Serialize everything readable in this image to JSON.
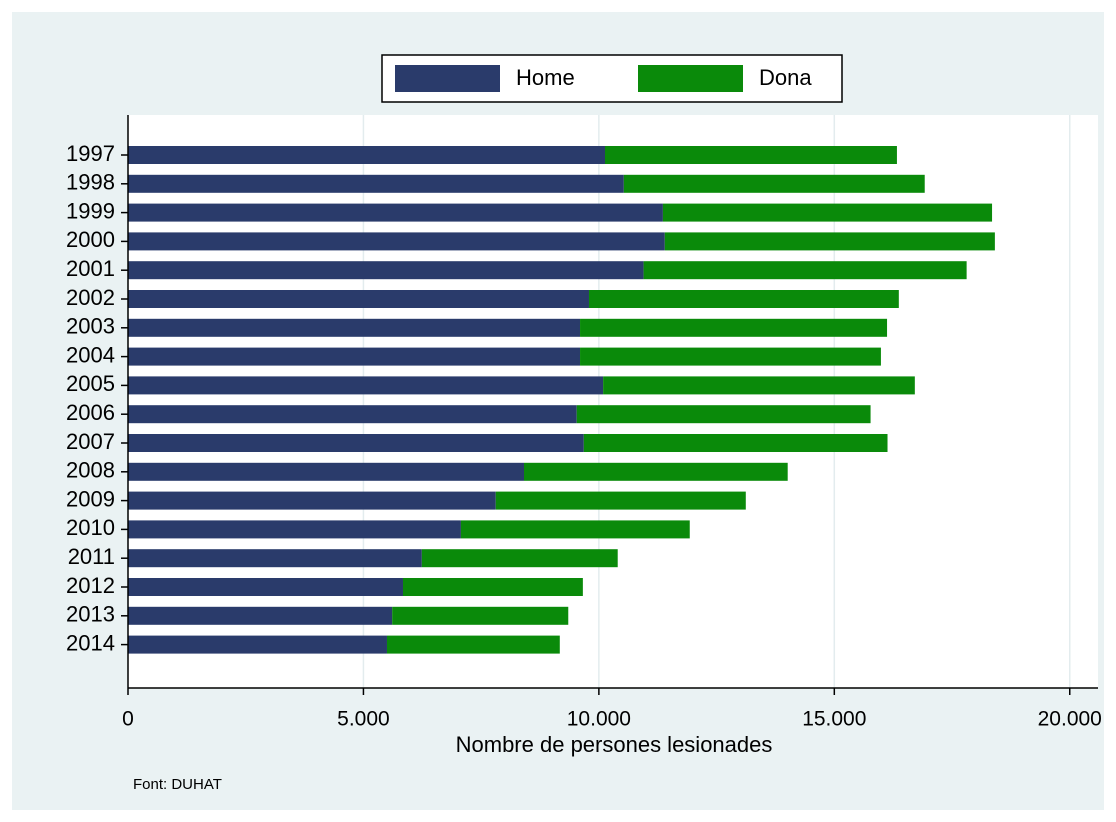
{
  "chart_data": {
    "type": "stacked_barh",
    "categories": [
      "1997",
      "1998",
      "1999",
      "2000",
      "2001",
      "2002",
      "2003",
      "2004",
      "2005",
      "2006",
      "2007",
      "2008",
      "2009",
      "2010",
      "2011",
      "2012",
      "2013",
      "2014"
    ],
    "series": [
      {
        "name": "Home",
        "color": "#2a3b6b",
        "values": [
          10130,
          10530,
          11360,
          11400,
          10950,
          9790,
          9600,
          9600,
          10090,
          9530,
          9680,
          8410,
          7810,
          7070,
          6240,
          5840,
          5610,
          5500
        ]
      },
      {
        "name": "Dona",
        "color": "#0a8a0a",
        "values": [
          6200,
          6390,
          6990,
          7010,
          6860,
          6580,
          6520,
          6390,
          6620,
          6240,
          6450,
          5600,
          5310,
          4860,
          4160,
          3820,
          3740,
          3670
        ]
      }
    ],
    "xlabel": "Nombre de persones lesionades",
    "xlim": [
      0,
      20600
    ],
    "xticks": [
      0,
      {
        "value": 5000,
        "label": "5.000"
      },
      {
        "value": 10000,
        "label": "10.000"
      },
      {
        "value": 15000,
        "label": "15.000"
      },
      {
        "value": 20000,
        "label": "20.000"
      }
    ],
    "grid": true,
    "note": "Font: DUHAT"
  }
}
